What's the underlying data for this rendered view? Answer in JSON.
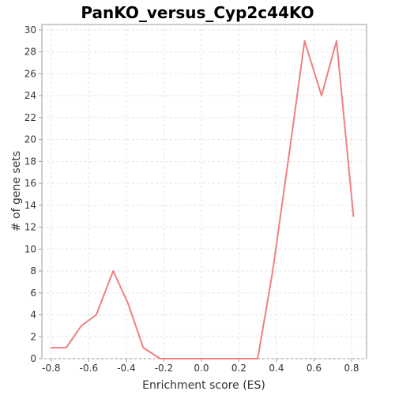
{
  "chart_data": {
    "type": "line",
    "title": "PanKO_versus_Cyp2c44KO",
    "xlabel": "Enrichment score (ES)",
    "ylabel": "# of gene sets",
    "xlim": [
      -0.85,
      0.88
    ],
    "ylim": [
      0,
      30.5
    ],
    "x_ticks": [
      -0.8,
      -0.6,
      -0.4,
      -0.2,
      0.0,
      0.2,
      0.4,
      0.6,
      0.8
    ],
    "x_tick_labels": [
      "-0.8",
      "-0.6",
      "-0.4",
      "-0.2",
      "0.0",
      "0.2",
      "0.4",
      "0.6",
      "0.8"
    ],
    "y_ticks": [
      0,
      2,
      4,
      6,
      8,
      10,
      12,
      14,
      16,
      18,
      20,
      22,
      24,
      26,
      28,
      30
    ],
    "y_tick_labels": [
      "0",
      "2",
      "4",
      "6",
      "8",
      "10",
      "12",
      "14",
      "16",
      "18",
      "20",
      "22",
      "24",
      "26",
      "28",
      "30"
    ],
    "grid": true,
    "legend": "none",
    "series": [
      {
        "color": "#f08080",
        "x": [
          -0.8,
          -0.72,
          -0.64,
          -0.56,
          -0.47,
          -0.39,
          -0.31,
          -0.22,
          -0.14,
          -0.06,
          0.03,
          0.11,
          0.19,
          0.3,
          0.38,
          0.47,
          0.55,
          0.64,
          0.72,
          0.81
        ],
        "y": [
          1,
          1,
          3,
          4,
          8,
          5,
          1,
          0,
          0,
          0,
          0,
          0,
          0,
          0,
          8,
          19,
          29,
          24,
          29,
          13
        ]
      }
    ]
  }
}
